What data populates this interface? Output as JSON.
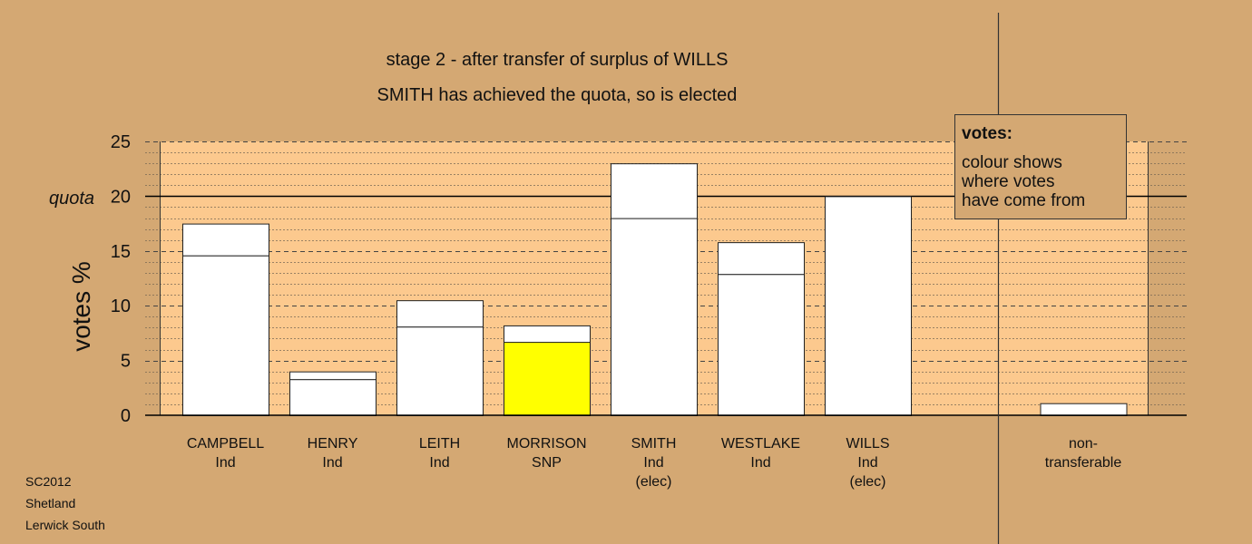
{
  "chart_data": {
    "type": "bar",
    "title_lines": [
      "stage 2 - after transfer of surplus of WILLS",
      "SMITH has achieved the quota, so is elected"
    ],
    "ylabel": "votes %",
    "ylim": [
      0,
      25
    ],
    "yticks": [
      "0",
      "5",
      "10",
      "15",
      "20",
      "25"
    ],
    "quota_label": "quota",
    "quota": 20,
    "grid": true,
    "categories": [
      [
        "CAMPBELL",
        "Ind"
      ],
      [
        "HENRY",
        "Ind"
      ],
      [
        "LEITH",
        "Ind"
      ],
      [
        "MORRISON",
        "SNP"
      ],
      [
        "SMITH",
        "Ind",
        "(elec)"
      ],
      [
        "WESTLAKE",
        "Ind"
      ],
      [
        "WILLS",
        "Ind",
        "(elec)"
      ],
      [
        "non-",
        "transferable"
      ]
    ],
    "segments": [
      [
        {
          "value": 14.6,
          "color": "#ffffff"
        },
        {
          "value": 2.9,
          "color": "#ffffff"
        }
      ],
      [
        {
          "value": 3.3,
          "color": "#ffffff"
        },
        {
          "value": 0.7,
          "color": "#ffffff"
        }
      ],
      [
        {
          "value": 8.1,
          "color": "#ffffff"
        },
        {
          "value": 2.4,
          "color": "#ffffff"
        }
      ],
      [
        {
          "value": 6.7,
          "color": "#ffff00"
        },
        {
          "value": 1.5,
          "color": "#ffffff"
        }
      ],
      [
        {
          "value": 18.0,
          "color": "#ffffff"
        },
        {
          "value": 5.0,
          "color": "#ffffff"
        }
      ],
      [
        {
          "value": 12.9,
          "color": "#ffffff"
        },
        {
          "value": 2.9,
          "color": "#ffffff"
        }
      ],
      [
        {
          "value": 20.0,
          "color": "#ffffff"
        }
      ],
      [
        {
          "value": 1.1,
          "color": "#ffffff"
        }
      ]
    ],
    "legend": {
      "title": "votes:",
      "lines": [
        "colour shows",
        "where votes",
        "have come from"
      ]
    },
    "colors": {
      "background": "#d4a873",
      "plot": "#fcc98e",
      "bar": "#ffffff",
      "transfer_from_morrison": "#ffff00"
    }
  },
  "source_lines": [
    "SC2012",
    "Shetland",
    "Lerwick South"
  ]
}
